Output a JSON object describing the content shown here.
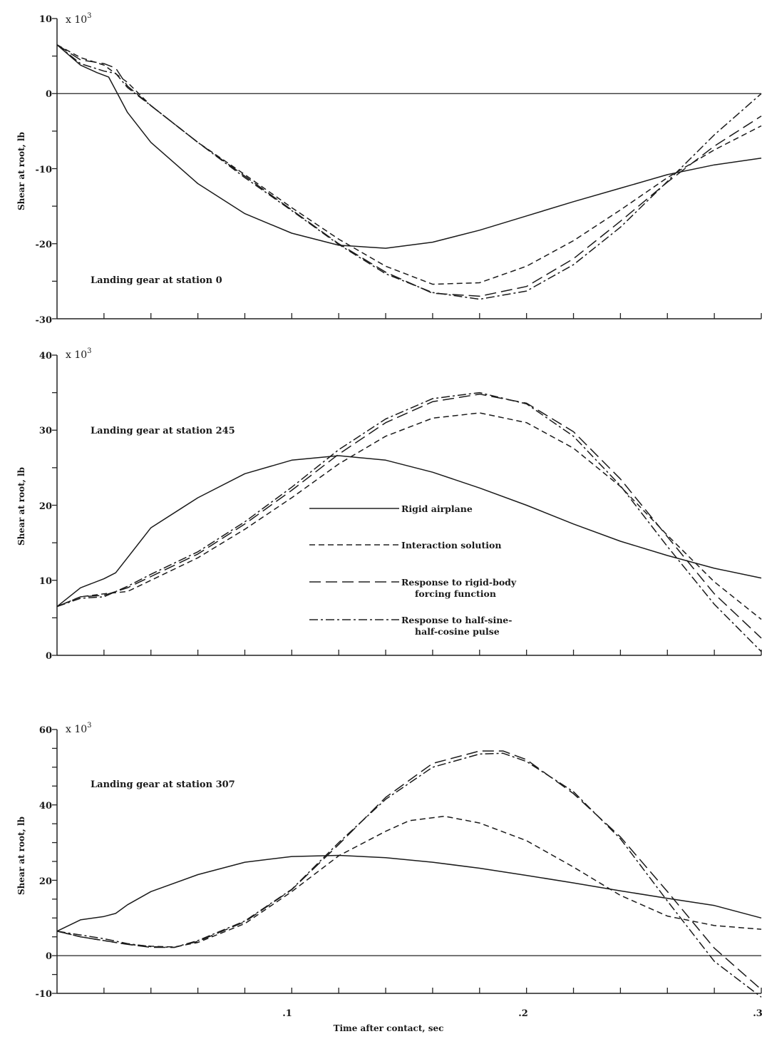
{
  "chart_data": [
    {
      "type": "line",
      "panel_label": "Landing gear at station 0",
      "multiplier": "x 10",
      "multiplier_exponent": "3",
      "ylabel": "Shear at root, lb",
      "xlim": [
        0,
        0.3
      ],
      "ylim": [
        -30,
        10
      ],
      "yticks": [
        "10",
        "0",
        "-10",
        "-20",
        "-30"
      ],
      "zero_line": true,
      "series": [
        {
          "style": "solid",
          "x": [
            0,
            0.01,
            0.017,
            0.022,
            0.03,
            0.04,
            0.06,
            0.08,
            0.1,
            0.12,
            0.14,
            0.16,
            0.18,
            0.2,
            0.22,
            0.24,
            0.26,
            0.28,
            0.3
          ],
          "y": [
            6.5,
            3.8,
            2.8,
            2.2,
            -2.5,
            -6.5,
            -12,
            -16,
            -18.6,
            -20.2,
            -20.6,
            -19.8,
            -18.2,
            -16.3,
            -14.4,
            -12.6,
            -10.8,
            -9.5,
            -8.6
          ]
        },
        {
          "style": "dash",
          "x": [
            0,
            0.01,
            0.02,
            0.03,
            0.04,
            0.06,
            0.08,
            0.1,
            0.12,
            0.14,
            0.16,
            0.18,
            0.2,
            0.22,
            0.24,
            0.26,
            0.28,
            0.3
          ],
          "y": [
            6.5,
            4.8,
            3.8,
            1.5,
            -1.6,
            -6.5,
            -10.8,
            -15.2,
            -19.4,
            -23,
            -25.4,
            -25.2,
            -23,
            -19.6,
            -15.5,
            -11.2,
            -7.5,
            -4.3
          ]
        },
        {
          "style": "longdash",
          "x": [
            0,
            0.01,
            0.02,
            0.025,
            0.03,
            0.04,
            0.06,
            0.08,
            0.1,
            0.12,
            0.14,
            0.16,
            0.18,
            0.2,
            0.22,
            0.24,
            0.26,
            0.28,
            0.3
          ],
          "y": [
            6.5,
            4.5,
            4,
            3.4,
            1,
            -1.6,
            -6.5,
            -11,
            -15.5,
            -20,
            -23.8,
            -26.6,
            -27,
            -25.7,
            -22,
            -17,
            -11.8,
            -7,
            -3
          ]
        },
        {
          "style": "dashdot",
          "x": [
            0,
            0.01,
            0.02,
            0.025,
            0.03,
            0.04,
            0.06,
            0.08,
            0.1,
            0.12,
            0.14,
            0.16,
            0.18,
            0.2,
            0.22,
            0.24,
            0.26,
            0.28,
            0.3
          ],
          "y": [
            6.5,
            4,
            3,
            2.7,
            0.8,
            -1.6,
            -6.5,
            -11.2,
            -15.6,
            -20.1,
            -24,
            -26.5,
            -27.4,
            -26.3,
            -22.8,
            -17.8,
            -11.7,
            -5.5,
            0
          ]
        }
      ]
    },
    {
      "type": "line",
      "panel_label": "Landing gear at station 245",
      "multiplier": "x 10",
      "multiplier_exponent": "3",
      "ylabel": "Shear at root, lb",
      "xlim": [
        0,
        0.3
      ],
      "ylim": [
        0,
        40
      ],
      "yticks": [
        "40",
        "30",
        "20",
        "10",
        "0"
      ],
      "zero_line": false,
      "legend": [
        {
          "label": "Rigid airplane",
          "style": "solid"
        },
        {
          "label": "Interaction solution",
          "style": "dash"
        },
        {
          "label": "Response to rigid-body",
          "label2": "forcing function",
          "style": "longdash"
        },
        {
          "label": "Response to half-sine-",
          "label2": "half-cosine pulse",
          "style": "dashdot"
        }
      ],
      "series": [
        {
          "style": "solid",
          "x": [
            0,
            0.01,
            0.02,
            0.025,
            0.03,
            0.04,
            0.06,
            0.08,
            0.1,
            0.12,
            0.14,
            0.16,
            0.18,
            0.2,
            0.22,
            0.24,
            0.26,
            0.28,
            0.3
          ],
          "y": [
            6.5,
            9,
            10.2,
            11,
            13,
            17,
            21,
            24.2,
            26,
            26.6,
            26,
            24.4,
            22.3,
            20,
            17.5,
            15.2,
            13.3,
            11.6,
            10.3
          ]
        },
        {
          "style": "dash",
          "x": [
            0,
            0.01,
            0.02,
            0.03,
            0.04,
            0.06,
            0.08,
            0.1,
            0.12,
            0.14,
            0.16,
            0.18,
            0.2,
            0.22,
            0.24,
            0.26,
            0.28,
            0.3
          ],
          "y": [
            6.5,
            7.8,
            8.2,
            8.5,
            10,
            13,
            16.8,
            21,
            25.5,
            29.2,
            31.6,
            32.3,
            31,
            27.6,
            22.5,
            16,
            9.8,
            4.8
          ]
        },
        {
          "style": "longdash",
          "x": [
            0,
            0.01,
            0.02,
            0.03,
            0.04,
            0.06,
            0.08,
            0.1,
            0.12,
            0.14,
            0.16,
            0.18,
            0.2,
            0.22,
            0.24,
            0.26,
            0.28,
            0.3
          ],
          "y": [
            6.5,
            7.8,
            8,
            9,
            10.5,
            13.5,
            17.5,
            22,
            26.8,
            31,
            33.8,
            34.8,
            33.6,
            29.8,
            23.5,
            15.8,
            8.2,
            2.3
          ]
        },
        {
          "style": "dashdot",
          "x": [
            0,
            0.01,
            0.02,
            0.03,
            0.04,
            0.06,
            0.08,
            0.1,
            0.12,
            0.14,
            0.16,
            0.18,
            0.2,
            0.22,
            0.24,
            0.26,
            0.28,
            0.3
          ],
          "y": [
            6.5,
            7.6,
            7.8,
            9.2,
            10.8,
            13.8,
            17.8,
            22.4,
            27.4,
            31.5,
            34.2,
            35,
            33.5,
            29.2,
            22.6,
            14.5,
            6.8,
            0.5
          ]
        }
      ]
    },
    {
      "type": "line",
      "panel_label": "Landing gear at station 307",
      "multiplier": "x 10",
      "multiplier_exponent": "3",
      "ylabel": "Shear at root, lb",
      "xlabel": "Time after contact, sec",
      "xlim": [
        0,
        0.3
      ],
      "ylim": [
        -10,
        60
      ],
      "yticks": [
        "60",
        "40",
        "20",
        "0",
        "-10"
      ],
      "xticks": [
        ".1",
        ".2",
        ".3"
      ],
      "zero_line": true,
      "series": [
        {
          "style": "solid",
          "x": [
            0,
            0.01,
            0.02,
            0.025,
            0.03,
            0.04,
            0.06,
            0.08,
            0.1,
            0.12,
            0.14,
            0.16,
            0.18,
            0.2,
            0.22,
            0.24,
            0.26,
            0.28,
            0.3
          ],
          "y": [
            6.5,
            9.5,
            10.4,
            11.2,
            13.5,
            17,
            21.5,
            24.8,
            26.3,
            26.6,
            26,
            24.8,
            23.2,
            21.3,
            19.3,
            17.2,
            15.2,
            13.3,
            10
          ]
        },
        {
          "style": "dash",
          "x": [
            0,
            0.01,
            0.02,
            0.03,
            0.04,
            0.05,
            0.06,
            0.08,
            0.1,
            0.12,
            0.14,
            0.15,
            0.165,
            0.18,
            0.2,
            0.22,
            0.24,
            0.26,
            0.28,
            0.3
          ],
          "y": [
            6.5,
            5,
            4,
            3,
            2.5,
            2.3,
            3.5,
            8.5,
            17,
            26.5,
            33,
            35.8,
            37,
            35.2,
            30.5,
            23.5,
            16,
            10.5,
            8,
            7
          ]
        },
        {
          "style": "longdash",
          "x": [
            0,
            0.01,
            0.02,
            0.03,
            0.04,
            0.05,
            0.06,
            0.08,
            0.1,
            0.12,
            0.14,
            0.16,
            0.18,
            0.19,
            0.2,
            0.22,
            0.24,
            0.26,
            0.28,
            0.3
          ],
          "y": [
            6.5,
            5,
            4,
            3,
            2.2,
            2.2,
            3.8,
            9,
            17.5,
            29.5,
            42,
            51,
            54.3,
            54.3,
            52,
            43,
            31.5,
            17,
            2,
            -9
          ]
        },
        {
          "style": "dashdot",
          "x": [
            0,
            0.01,
            0.02,
            0.03,
            0.04,
            0.05,
            0.06,
            0.08,
            0.1,
            0.12,
            0.14,
            0.16,
            0.18,
            0.19,
            0.2,
            0.22,
            0.24,
            0.26,
            0.28,
            0.3
          ],
          "y": [
            6.5,
            5.5,
            4.5,
            3.2,
            2.4,
            2.2,
            4,
            9.2,
            17.6,
            30,
            41.5,
            50,
            53.5,
            53.7,
            51.5,
            43.5,
            31,
            14.5,
            -1.5,
            -11
          ]
        }
      ]
    }
  ]
}
